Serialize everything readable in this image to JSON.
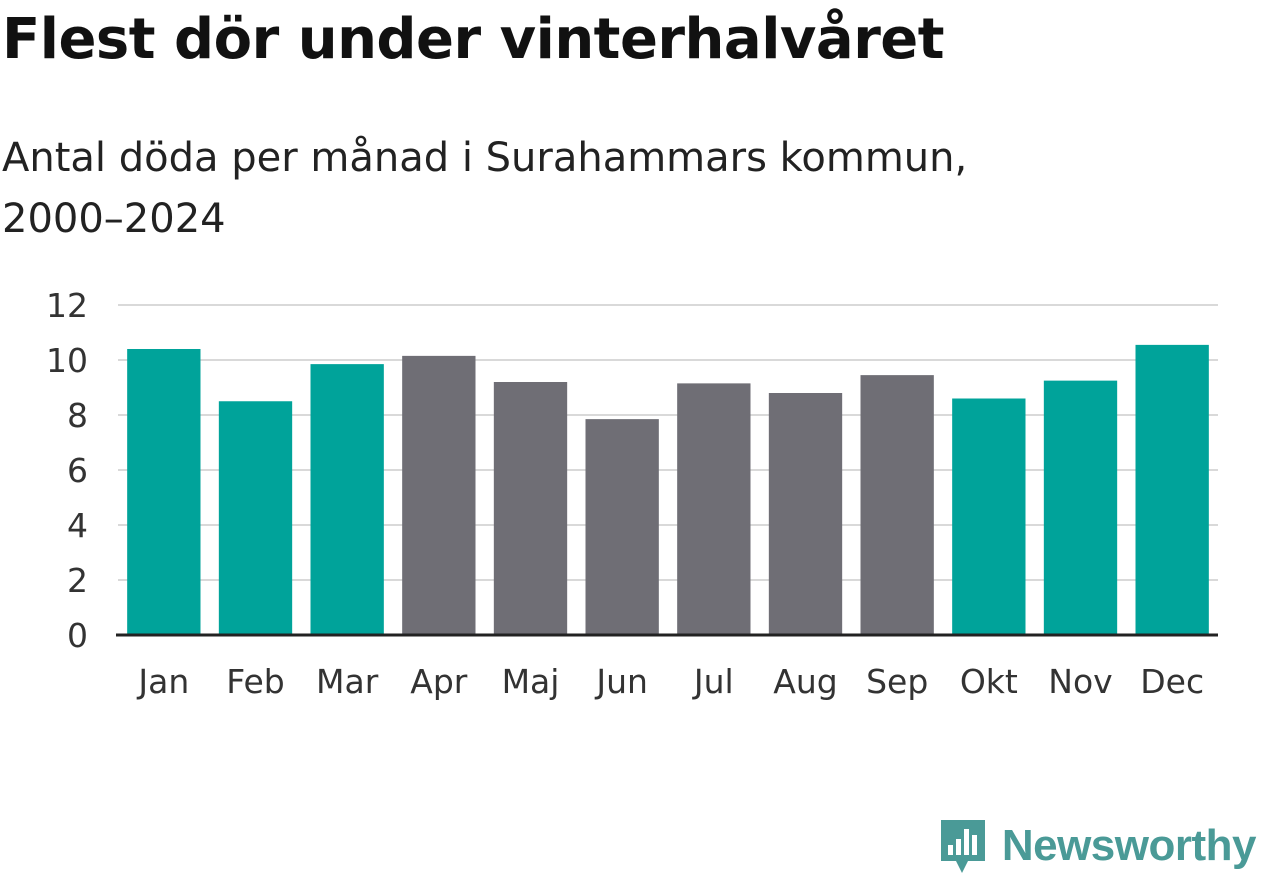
{
  "colors": {
    "winter": "#00a39a",
    "other": "#6f6e75",
    "grid": "#d9d9d9",
    "axis": "#222222",
    "brand": "#4a9a97"
  },
  "brand": {
    "name": "Newsworthy",
    "icon": "newsworthy-logo-icon"
  },
  "chart_data": {
    "type": "bar",
    "title": "Flest dör under vinterhalvåret",
    "subtitle_lines": [
      "Antal döda per månad i Surahammars kommun,",
      "2000–2024"
    ],
    "xlabel": "",
    "ylabel": "",
    "ylim": [
      0,
      12
    ],
    "yticks": [
      0,
      2,
      4,
      6,
      8,
      10,
      12
    ],
    "grid": true,
    "categories": [
      "Jan",
      "Feb",
      "Mar",
      "Apr",
      "Maj",
      "Jun",
      "Jul",
      "Aug",
      "Sep",
      "Okt",
      "Nov",
      "Dec"
    ],
    "values": [
      10.4,
      8.5,
      9.85,
      10.15,
      9.2,
      7.85,
      9.15,
      8.8,
      9.45,
      8.6,
      9.25,
      10.55
    ],
    "highlight": [
      "winter",
      "winter",
      "winter",
      "other",
      "other",
      "other",
      "other",
      "other",
      "other",
      "winter",
      "winter",
      "winter"
    ]
  }
}
